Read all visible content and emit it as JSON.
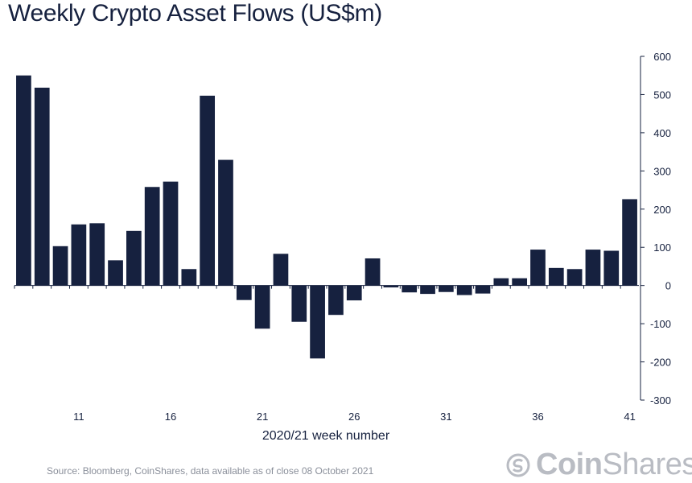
{
  "title": "Weekly Crypto Asset Flows (US$m)",
  "source": "Source: Bloomberg, CoinShares, data available as of close 08 October 2021",
  "logo": {
    "bold": "Coin",
    "thin": "Shares"
  },
  "colors": {
    "bar": "#16213f",
    "axis": "#16213f"
  },
  "chart_data": {
    "type": "bar",
    "title": "Weekly Crypto Asset Flows (US$m)",
    "xlabel": "2020/21 week number",
    "ylabel": "",
    "ylim": [
      -300,
      600
    ],
    "yticks": [
      600,
      500,
      400,
      300,
      200,
      100,
      0,
      -100,
      -200,
      -300
    ],
    "y_axis_position": "right",
    "categories": [
      8,
      9,
      10,
      11,
      12,
      13,
      14,
      15,
      16,
      17,
      18,
      19,
      20,
      21,
      22,
      23,
      24,
      25,
      26,
      27,
      28,
      29,
      30,
      31,
      32,
      33,
      34,
      35,
      36,
      37,
      38,
      39,
      40,
      41
    ],
    "xtick_labels": [
      "11",
      "16",
      "21",
      "26",
      "31",
      "36",
      "41"
    ],
    "xtick_weeks": [
      11,
      16,
      21,
      26,
      31,
      36,
      41
    ],
    "values": [
      550,
      518,
      103,
      160,
      163,
      66,
      143,
      258,
      272,
      43,
      497,
      329,
      -38,
      -113,
      83,
      -95,
      -191,
      -77,
      -39,
      71,
      -5,
      -18,
      -22,
      -17,
      -25,
      -21,
      19,
      19,
      94,
      46,
      43,
      94,
      91,
      226
    ]
  }
}
